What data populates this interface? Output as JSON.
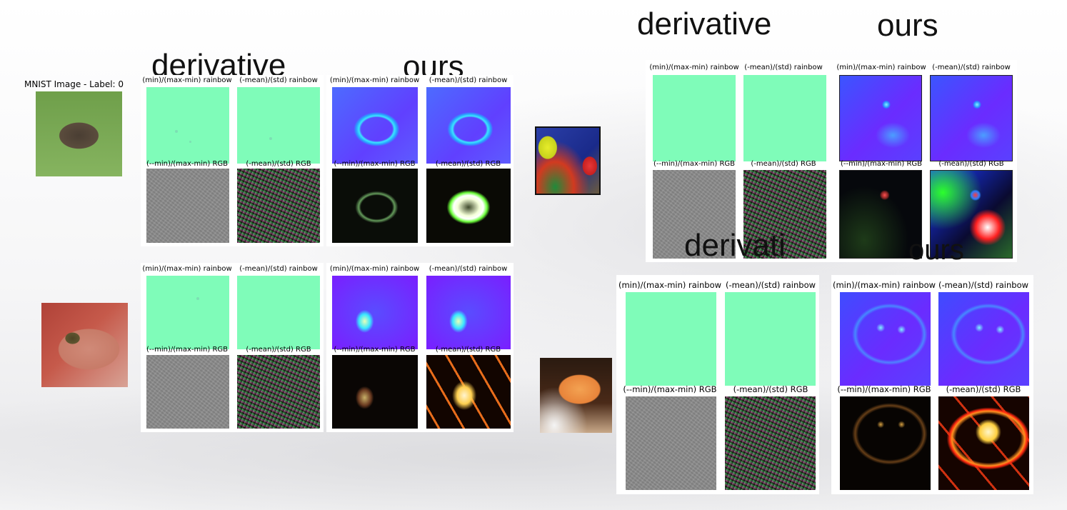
{
  "captions": {
    "mnist_title": "MNIST Image - Label: 0",
    "min_max_rainbow": "(min)/(max-min) rainbow",
    "mean_std_rainbow": "(-mean)/(std) rainbow",
    "min_max_rgb": "(--min)/(max-min) RGB",
    "mean_std_rgb": "(-mean)/(std) RGB"
  },
  "headings": {
    "derivative": "derivative",
    "ours": "ours",
    "derivative_cut": "derivati",
    "ours_cut": "ours"
  },
  "images": {
    "wombat": "wombat photo",
    "frog": "small frog on hand photo",
    "parrot": "lorikeet parrot photo",
    "crab": "orange crab photo"
  },
  "colors": {
    "flat_green": "#7ffcb9",
    "rainbow_blue": "#6b2cff",
    "highlight_cyan": "#39e6ff"
  }
}
